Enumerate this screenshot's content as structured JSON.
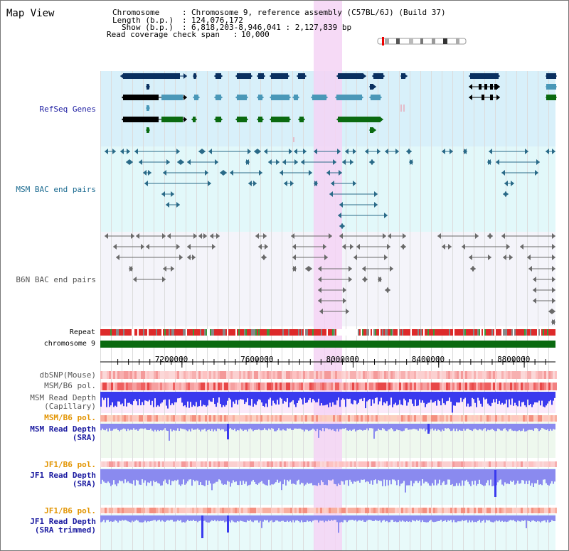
{
  "view": {
    "title": "Map View"
  },
  "info": {
    "chromosome_key": "Chromosome",
    "chromosome_val": "Chromosome 9, reference assembly (C57BL/6J) (Build 37)",
    "length_key": "Length (b.p.)",
    "length_val": "124,076,172",
    "show_key": "Show (b.p.)",
    "show_val": "6,818,203-8,946,041 : 2,127,839 bp",
    "span_key": "Read coverage check span",
    "span_val": "10,000"
  },
  "tracks": {
    "refseq": "RefSeq Genes",
    "msm_bac": "MSM BAC end pairs",
    "b6n_bac": "B6N BAC end pairs",
    "repeat": "Repeat",
    "chromosome": "chromosome 9",
    "dbsnp": "dbSNP(Mouse)",
    "msm_b6_pol_1": "MSM/B6 pol.",
    "msm_depth_cap_1": "MSM Read Depth",
    "msm_depth_cap_2": "(Capillary)",
    "msm_b6_pol_2": "MSM/B6 pol.",
    "msm_depth_sra_1": "MSM Read Depth",
    "msm_depth_sra_2": "(SRA)",
    "jf1_b6_pol_1": "JF1/B6 pol.",
    "jf1_depth_sra_1": "JF1 Read Depth",
    "jf1_depth_sra_2": "(SRA)",
    "jf1_b6_pol_2": "JF1/B6 pol.",
    "jf1_depth_trim_1": "JF1 Read Depth",
    "jf1_depth_trim_2": "(SRA trimmed)"
  },
  "axis": {
    "ticks": [
      {
        "label": "7200000",
        "value": 7200000
      },
      {
        "label": "7600000",
        "value": 7600000
      },
      {
        "label": "8000000",
        "value": 8000000
      },
      {
        "label": "8400000",
        "value": 8400000
      },
      {
        "label": "8800000",
        "value": 8800000
      }
    ]
  },
  "colors": {
    "refseq_bg": "#d8f0fa",
    "msm_bac_bg": "#e2f8fa",
    "b6n_bac_bg": "#f4f4fa",
    "highlight": "#f4d4f4",
    "dark_navy": "#0a3060",
    "teal_blue": "#4a98b8",
    "green": "#0a6a10",
    "black": "#000000",
    "msm_line": "#2a6a88",
    "b6n_line": "#6a6a6a",
    "depth_blue": "#3a3aee",
    "depth_light": "#8a8aef",
    "label_blue": "#1a1aa0",
    "label_orange": "#e29400",
    "label_gray": "#555555",
    "label_teal": "#1a6a90"
  }
}
